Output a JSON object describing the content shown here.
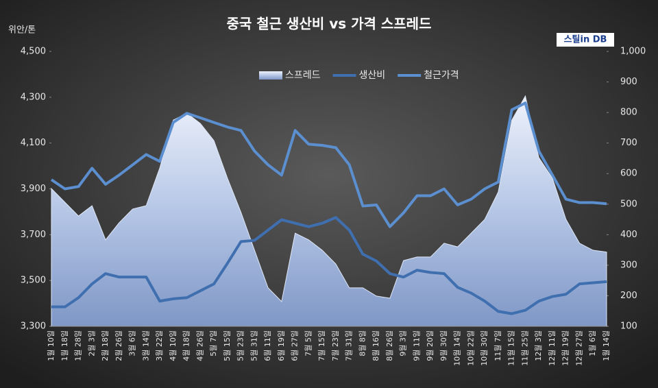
{
  "chart_data": {
    "type": "line",
    "title": "중국 철근 생산비 vs 가격 스프레드",
    "y_axis_label": "위안/톤",
    "logo": "스틸in DB",
    "legend": "top",
    "grid": false,
    "categories": [
      "1월 10일",
      "1월 18일",
      "1월 28일",
      "2월 3일",
      "2월 18일",
      "2월 26일",
      "3월 6일",
      "3월 14일",
      "3월 22일",
      "4월 10일",
      "4월 18일",
      "4월 26일",
      "5월 7일",
      "5월 15일",
      "5월 23일",
      "5월 31일",
      "6월 11일",
      "6월 19일",
      "6월 27일",
      "7월 5일",
      "7월 15일",
      "7월 23일",
      "7월 31일",
      "8월 8일",
      "8월 16일",
      "8월 26일",
      "9월 3일",
      "9월 11일",
      "9월 20일",
      "9월 30일",
      "10월 14일",
      "10월 22일",
      "10월 30일",
      "11월 7일",
      "11월 15일",
      "11월 25일",
      "12월 3일",
      "12월 11일",
      "12월 19일",
      "12월 27일",
      "1월 6일",
      "1월 14일"
    ],
    "series": [
      {
        "name": "스프레드",
        "type": "area",
        "axis": "y2",
        "color": "#b8c8e8",
        "values": [
          551,
          506,
          461,
          495,
          383,
          439,
          484,
          495,
          618,
          775,
          798,
          764,
          708,
          585,
          473,
          349,
          226,
          181,
          405,
          383,
          349,
          304,
          226,
          226,
          199,
          192,
          315,
          327,
          327,
          372,
          360,
          405,
          450,
          540,
          775,
          854,
          652,
          585,
          450,
          372,
          349,
          343
        ]
      },
      {
        "name": "생산비",
        "type": "line",
        "axis": "y",
        "color": "#3f6fae",
        "values": [
          3385,
          3385,
          3425,
          3485,
          3530,
          3515,
          3515,
          3515,
          3410,
          3420,
          3425,
          3455,
          3485,
          3575,
          3670,
          3675,
          3720,
          3765,
          3750,
          3735,
          3750,
          3775,
          3720,
          3615,
          3585,
          3530,
          3515,
          3545,
          3535,
          3530,
          3470,
          3445,
          3410,
          3365,
          3355,
          3370,
          3410,
          3430,
          3440,
          3485,
          3490,
          3495
        ]
      },
      {
        "name": "철근가격",
        "type": "line",
        "axis": "y",
        "color": "#5b8fd0",
        "values": [
          3940,
          3900,
          3910,
          3990,
          3920,
          3960,
          4005,
          4050,
          4020,
          4190,
          4230,
          4210,
          4190,
          4170,
          4155,
          4065,
          4005,
          3960,
          4155,
          4095,
          4090,
          4080,
          4005,
          3825,
          3830,
          3735,
          3795,
          3870,
          3870,
          3900,
          3830,
          3855,
          3900,
          3930,
          4245,
          4275,
          4065,
          3960,
          3855,
          3840,
          3840,
          3835
        ]
      }
    ],
    "ylim": [
      3300,
      4500
    ],
    "yticks": [
      {
        "value": 3300,
        "label": "3,300"
      },
      {
        "value": 3500,
        "label": "3,500"
      },
      {
        "value": 3700,
        "label": "3,700"
      },
      {
        "value": 3900,
        "label": "3,900"
      },
      {
        "value": 4100,
        "label": "4,100"
      },
      {
        "value": 4300,
        "label": "4,300"
      },
      {
        "value": 4500,
        "label": "4,500"
      }
    ],
    "y2lim": [
      100,
      1000
    ],
    "y2ticks": [
      100,
      200,
      300,
      400,
      500,
      600,
      700,
      800,
      900,
      {
        "value": 1000,
        "label": "1,000"
      }
    ]
  }
}
